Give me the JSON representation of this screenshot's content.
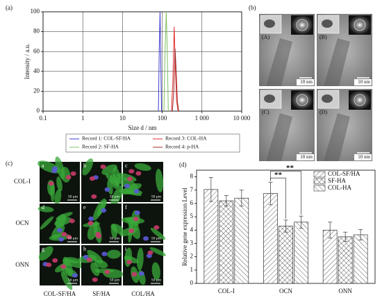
{
  "chart_data": [
    {
      "type": "line",
      "label": "(a)",
      "xlabel": "Size d / nm",
      "ylabel": "Intensity / a.u.",
      "xscale": "log",
      "xlim": [
        0.1,
        10000
      ],
      "xticks": [
        0.1,
        1,
        10,
        100,
        {
          "value": 1000,
          "label": "1 000"
        },
        {
          "value": 10000,
          "label": "10 000"
        }
      ],
      "ylim": [
        0,
        100
      ],
      "yticks": [
        0,
        20,
        40,
        60,
        80,
        100
      ],
      "grid": true,
      "series": [
        {
          "name": "Record 1: COL-SF/HA",
          "color": "#3a3ad0",
          "x": [
            80,
            84,
            88,
            92,
            96
          ],
          "values": [
            0,
            60,
            100,
            50,
            0
          ]
        },
        {
          "name": "Record 2: SF-HA",
          "color": "#7fc060",
          "x": [
            110,
            118,
            126,
            134,
            142
          ],
          "values": [
            0,
            60,
            100,
            60,
            0
          ]
        },
        {
          "name": "Record 3: COL-HA",
          "color": "#e03030",
          "x": [
            170,
            185,
            200,
            215,
            230,
            250
          ],
          "values": [
            0,
            30,
            85,
            40,
            10,
            0
          ]
        },
        {
          "name": "Record 4: p-HA",
          "color": "#a02828",
          "x": [
            180,
            195,
            210,
            225,
            240,
            260
          ],
          "values": [
            0,
            20,
            63,
            40,
            10,
            0
          ]
        }
      ]
    },
    {
      "type": "bar",
      "label": "(d)",
      "ylabel": "Relative gene expression Level",
      "categories": [
        "COL-I",
        "OCN",
        "ONN"
      ],
      "ylim": [
        0,
        8.5
      ],
      "yticks": [
        0,
        1,
        2,
        3,
        4,
        5,
        6,
        7,
        8
      ],
      "annotations": [
        "**",
        "**"
      ],
      "series": [
        {
          "name": "COL-SF/HA",
          "hatch": "/",
          "values": [
            7.05,
            6.75,
            4.0
          ],
          "errors": [
            0.9,
            0.85,
            0.6
          ]
        },
        {
          "name": "SF-HA",
          "hatch": "x",
          "values": [
            6.2,
            4.3,
            3.5
          ],
          "errors": [
            0.4,
            0.45,
            0.35
          ]
        },
        {
          "name": "COL-HA",
          "hatch": "\\",
          "values": [
            6.4,
            4.6,
            3.65
          ],
          "errors": [
            0.6,
            0.45,
            0.4
          ]
        }
      ]
    }
  ],
  "panel_b": {
    "label": "(b)",
    "images": [
      {
        "label": "(A)",
        "scale": "10 nm"
      },
      {
        "label": "(B)",
        "scale": "10 nm"
      },
      {
        "label": "(C)",
        "scale": "10 nm"
      },
      {
        "label": "(D)",
        "scale": "10 nm"
      }
    ]
  },
  "panel_c": {
    "label": "(c)",
    "rows": [
      "COL-I",
      "OCN",
      "ONN"
    ],
    "columns": [
      "COL-SF/HA",
      "SF/HA",
      "COL/HA"
    ],
    "tiles": [
      "a",
      "b",
      "c",
      "d",
      "e",
      "f",
      "g",
      "h",
      "i"
    ],
    "scale": "50 μm"
  }
}
